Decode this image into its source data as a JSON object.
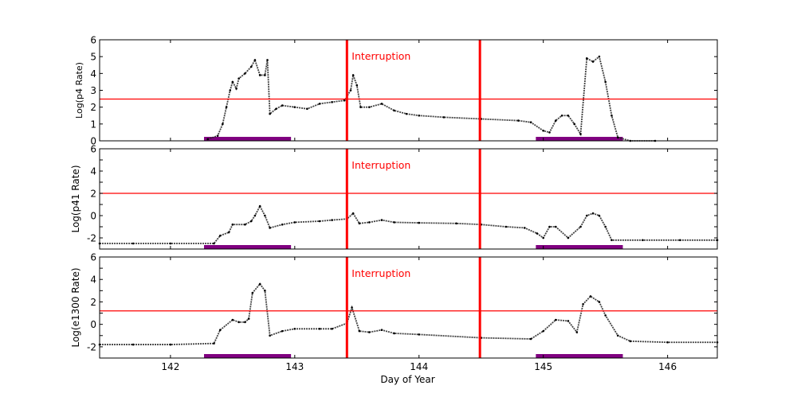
{
  "chart_data": [
    {
      "type": "scatter",
      "ylabel": "Log(p4 Rate)",
      "xlabel": "",
      "xlim": [
        141.43,
        146.4
      ],
      "ylim": [
        0,
        6
      ],
      "yticks": [
        0,
        1,
        2,
        3,
        4,
        5,
        6
      ],
      "ytick_labels": [
        "0",
        "1",
        "2",
        "3",
        "4",
        "5",
        "6"
      ],
      "xticks": [
        142,
        143,
        144,
        145,
        146
      ],
      "threshold": 2.48,
      "interruptions": [
        143.42,
        144.49
      ],
      "annotation": "Interruption",
      "highlight_spans": [
        [
          142.27,
          142.97
        ],
        [
          144.94,
          145.64
        ]
      ],
      "x": [
        142.3,
        142.38,
        142.42,
        142.45,
        142.48,
        142.5,
        142.53,
        142.55,
        142.6,
        142.65,
        142.68,
        142.72,
        142.76,
        142.78,
        142.8,
        142.85,
        142.9,
        143.0,
        143.1,
        143.2,
        143.3,
        143.4,
        143.45,
        143.47,
        143.5,
        143.53,
        143.6,
        143.7,
        143.8,
        143.9,
        144.0,
        144.2,
        144.5,
        144.8,
        144.9,
        145.0,
        145.05,
        145.1,
        145.15,
        145.2,
        145.25,
        145.3,
        145.35,
        145.4,
        145.45,
        145.5,
        145.55,
        145.6,
        145.7,
        145.9
      ],
      "y": [
        0.1,
        0.3,
        1.0,
        2.0,
        3.0,
        3.5,
        3.1,
        3.7,
        4.0,
        4.4,
        4.8,
        3.9,
        3.9,
        4.8,
        1.6,
        1.9,
        2.1,
        2.0,
        1.9,
        2.2,
        2.3,
        2.4,
        3.0,
        3.9,
        3.3,
        2.0,
        2.0,
        2.2,
        1.8,
        1.6,
        1.5,
        1.4,
        1.3,
        1.2,
        1.1,
        0.6,
        0.5,
        1.2,
        1.5,
        1.5,
        1.0,
        0.4,
        4.9,
        4.7,
        5.0,
        3.5,
        1.5,
        0.2,
        0.0,
        0.0
      ],
      "colors": {
        "data": "#000000",
        "threshold": "#ff0000",
        "interruption": "#ff0000",
        "span": "#800080"
      }
    },
    {
      "type": "scatter",
      "ylabel": "Log(p41 Rate)",
      "xlabel": "",
      "xlim": [
        141.43,
        146.4
      ],
      "ylim": [
        -3,
        6
      ],
      "yticks": [
        -2,
        0,
        2,
        4,
        6
      ],
      "ytick_labels": [
        "-2",
        "0",
        "2",
        "4",
        "6"
      ],
      "xticks": [
        142,
        143,
        144,
        145,
        146
      ],
      "threshold": 2.0,
      "interruptions": [
        143.42,
        144.49
      ],
      "annotation": "Interruption",
      "highlight_spans": [
        [
          142.27,
          142.97
        ],
        [
          144.94,
          145.64
        ]
      ],
      "x": [
        141.43,
        141.7,
        142.0,
        142.35,
        142.4,
        142.47,
        142.5,
        142.6,
        142.65,
        142.68,
        142.72,
        142.76,
        142.8,
        142.9,
        143.0,
        143.2,
        143.3,
        143.42,
        143.47,
        143.52,
        143.6,
        143.7,
        143.8,
        144.0,
        144.3,
        144.5,
        144.7,
        144.85,
        144.95,
        145.0,
        145.05,
        145.1,
        145.2,
        145.3,
        145.35,
        145.4,
        145.45,
        145.5,
        145.55,
        145.8,
        146.1,
        146.4
      ],
      "y": [
        -2.5,
        -2.5,
        -2.5,
        -2.5,
        -1.8,
        -1.5,
        -0.8,
        -0.8,
        -0.5,
        0.0,
        0.85,
        0.0,
        -1.1,
        -0.8,
        -0.6,
        -0.5,
        -0.4,
        -0.3,
        0.2,
        -0.7,
        -0.6,
        -0.4,
        -0.6,
        -0.65,
        -0.7,
        -0.8,
        -1.0,
        -1.1,
        -1.6,
        -2.0,
        -1.0,
        -1.0,
        -2.0,
        -1.0,
        0.0,
        0.2,
        0.0,
        -1.0,
        -2.2,
        -2.2,
        -2.2,
        -2.2
      ],
      "colors": {
        "data": "#000000",
        "threshold": "#ff0000",
        "interruption": "#ff0000",
        "span": "#800080"
      }
    },
    {
      "type": "scatter",
      "ylabel": "Log(e1300 Rate)",
      "xlabel": "Day of Year",
      "xlim": [
        141.43,
        146.4
      ],
      "ylim": [
        -3,
        6
      ],
      "yticks": [
        -2,
        0,
        2,
        4,
        6
      ],
      "ytick_labels": [
        "-2",
        "0",
        "2",
        "4",
        "6"
      ],
      "xticks": [
        142,
        143,
        144,
        145,
        146
      ],
      "xtick_labels": [
        "142",
        "143",
        "144",
        "145",
        "146"
      ],
      "threshold": 1.2,
      "interruptions": [
        143.42,
        144.49
      ],
      "annotation": "Interruption",
      "highlight_spans": [
        [
          142.27,
          142.97
        ],
        [
          144.94,
          145.64
        ]
      ],
      "x": [
        141.43,
        141.7,
        142.0,
        142.35,
        142.4,
        142.5,
        142.55,
        142.6,
        142.63,
        142.66,
        142.72,
        142.76,
        142.8,
        142.9,
        143.0,
        143.2,
        143.3,
        143.42,
        143.46,
        143.52,
        143.6,
        143.7,
        143.8,
        144.0,
        144.5,
        144.9,
        145.0,
        145.1,
        145.2,
        145.27,
        145.32,
        145.38,
        145.45,
        145.5,
        145.6,
        145.7,
        146.0,
        146.4
      ],
      "y": [
        -1.8,
        -1.8,
        -1.8,
        -1.7,
        -0.5,
        0.4,
        0.2,
        0.2,
        0.5,
        2.8,
        3.6,
        3.0,
        -1.0,
        -0.6,
        -0.4,
        -0.4,
        -0.4,
        0.1,
        1.5,
        -0.6,
        -0.7,
        -0.5,
        -0.8,
        -0.9,
        -1.2,
        -1.3,
        -0.6,
        0.4,
        0.3,
        -0.7,
        1.8,
        2.5,
        2.0,
        0.8,
        -1.0,
        -1.5,
        -1.6,
        -1.6
      ],
      "colors": {
        "data": "#000000",
        "threshold": "#ff0000",
        "interruption": "#ff0000",
        "span": "#800080"
      }
    }
  ]
}
